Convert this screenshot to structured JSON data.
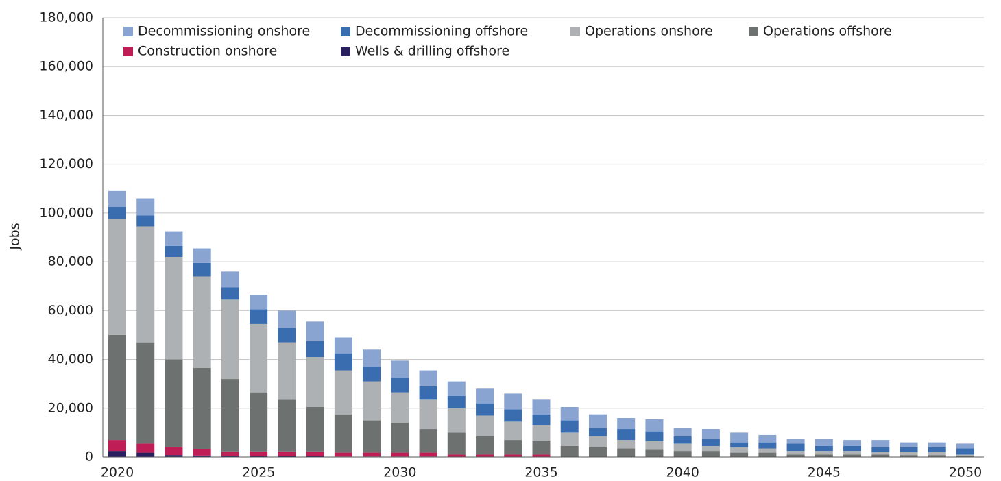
{
  "chart_data": {
    "type": "stacked_bar",
    "y_label": "Jobs",
    "categories": [
      "2020",
      null,
      null,
      null,
      null,
      "2025",
      null,
      null,
      null,
      null,
      "2030",
      null,
      null,
      null,
      null,
      "2035",
      null,
      null,
      null,
      null,
      "2040",
      null,
      null,
      null,
      null,
      "2045",
      null,
      null,
      null,
      null,
      "2050"
    ],
    "series": [
      {
        "name": "Decommissioning onshore",
        "color": "#8aa4d1",
        "values": [
          6500,
          7000,
          6000,
          6000,
          6500,
          6000,
          7000,
          8000,
          6500,
          7000,
          7000,
          6500,
          6000,
          6000,
          6500,
          6000,
          5500,
          5500,
          4500,
          5000,
          3500,
          4000,
          4000,
          3000,
          2000,
          3000,
          2500,
          3000,
          2000,
          2000,
          2000
        ]
      },
      {
        "name": "Decommissioning offshore",
        "color": "#3a6db0",
        "values": [
          5000,
          4500,
          4500,
          5500,
          5000,
          6000,
          6000,
          6500,
          7000,
          6000,
          6000,
          5500,
          5000,
          5000,
          5000,
          4500,
          5000,
          3500,
          4500,
          4000,
          3000,
          3000,
          2000,
          2500,
          3000,
          2000,
          2000,
          2000,
          2000,
          2000,
          2500
        ]
      },
      {
        "name": "Operations onshore",
        "color": "#adb1b3",
        "values": [
          47500,
          47500,
          42000,
          37500,
          32500,
          28000,
          23500,
          20500,
          18000,
          16000,
          12500,
          12000,
          10000,
          8500,
          7500,
          6500,
          5500,
          4500,
          3500,
          3500,
          3000,
          2000,
          2200,
          1700,
          1500,
          1500,
          1500,
          1000,
          1200,
          1200,
          500
        ]
      },
      {
        "name": "Operations offshore",
        "color": "#6d7270",
        "values": [
          43000,
          41500,
          36000,
          33300,
          29700,
          24200,
          21200,
          18200,
          15700,
          13200,
          12200,
          9700,
          9000,
          7500,
          6000,
          5500,
          4500,
          4000,
          3500,
          3000,
          2500,
          2500,
          1800,
          1800,
          1000,
          1000,
          1000,
          1000,
          800,
          800,
          500
        ]
      },
      {
        "name": "Construction onshore",
        "color": "#be1e55",
        "values": [
          4500,
          3700,
          3200,
          2600,
          1800,
          1900,
          1900,
          1900,
          1600,
          1600,
          1600,
          1600,
          900,
          900,
          900,
          900,
          0,
          0,
          0,
          0,
          0,
          0,
          0,
          0,
          0,
          0,
          0,
          0,
          0,
          0,
          0
        ]
      },
      {
        "name": "Wells & drilling offshore",
        "color": "#2a1f5e",
        "values": [
          2500,
          1800,
          800,
          600,
          500,
          400,
          400,
          400,
          200,
          200,
          200,
          200,
          100,
          100,
          100,
          100,
          0,
          0,
          0,
          0,
          0,
          0,
          0,
          0,
          0,
          0,
          0,
          0,
          0,
          0,
          0
        ]
      }
    ],
    "ylim": [
      0,
      180000
    ],
    "yticks": [
      0,
      {
        "value": 20000,
        "label": "20,000"
      },
      {
        "value": 40000,
        "label": "40,000"
      },
      {
        "value": 60000,
        "label": "60,000"
      },
      {
        "value": 80000,
        "label": "80,000"
      },
      {
        "value": 100000,
        "label": "100,000"
      },
      {
        "value": 120000,
        "label": "120,000"
      },
      {
        "value": 140000,
        "label": "140,000"
      },
      {
        "value": 160000,
        "label": "160,000"
      },
      {
        "value": 180000,
        "label": "180,000"
      }
    ],
    "grid": true,
    "legend": "top-left"
  }
}
